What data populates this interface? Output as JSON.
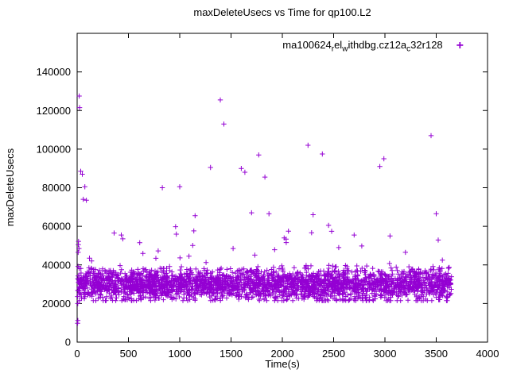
{
  "chart_data": {
    "type": "scatter",
    "title": "maxDeleteUsecs vs Time for qp100.L2",
    "xlabel": "Time(s)",
    "ylabel": "maxDeleteUsecs",
    "xlim": [
      0,
      4000
    ],
    "ylim": [
      0,
      160000
    ],
    "xticks": [
      0,
      500,
      1000,
      1500,
      2000,
      2500,
      3000,
      3500,
      4000
    ],
    "yticks": [
      0,
      20000,
      40000,
      60000,
      80000,
      100000,
      120000,
      140000
    ],
    "grid": false,
    "legend_position": "top-right-inside",
    "series": [
      {
        "name": "ma100624_rel_withdbg.cz12a_c32r128",
        "label_segments": [
          {
            "text": "ma100624"
          },
          {
            "text": "r",
            "sub": true
          },
          {
            "text": "el"
          },
          {
            "text": "w",
            "sub": true
          },
          {
            "text": "ithdbg.cz12a"
          },
          {
            "text": "c",
            "sub": true
          },
          {
            "text": "32r128"
          }
        ],
        "marker_glyph": "+",
        "color": "#9400d3",
        "band": {
          "seed": 42,
          "count": 2800,
          "x_range": [
            3,
            3650
          ],
          "y_center": 29800,
          "y_spread": 8000,
          "y_clamp": [
            21500,
            41500
          ]
        },
        "extra_scatter": {
          "seed": 7,
          "count": 18,
          "x_range": [
            100,
            3600
          ],
          "y_range": [
            41000,
            58000
          ]
        },
        "outliers": [
          [
            5,
            9800
          ],
          [
            7,
            11200
          ],
          [
            6,
            20000
          ],
          [
            10,
            46500
          ],
          [
            12,
            50500
          ],
          [
            14,
            52200
          ],
          [
            18,
            48500
          ],
          [
            20,
            127500
          ],
          [
            24,
            121500
          ],
          [
            35,
            88500
          ],
          [
            50,
            87000
          ],
          [
            60,
            74000
          ],
          [
            75,
            80500
          ],
          [
            90,
            73500
          ],
          [
            120,
            43500
          ],
          [
            430,
            55500
          ],
          [
            445,
            53500
          ],
          [
            610,
            51500
          ],
          [
            830,
            80000
          ],
          [
            960,
            59800
          ],
          [
            1000,
            80500
          ],
          [
            1090,
            44500
          ],
          [
            1150,
            65500
          ],
          [
            1300,
            90500
          ],
          [
            1395,
            125500
          ],
          [
            1430,
            113000
          ],
          [
            1520,
            48500
          ],
          [
            1600,
            90000
          ],
          [
            1635,
            88000
          ],
          [
            1700,
            67000
          ],
          [
            1770,
            97000
          ],
          [
            1830,
            85500
          ],
          [
            1870,
            66500
          ],
          [
            2060,
            57500
          ],
          [
            2250,
            102000
          ],
          [
            2300,
            66000
          ],
          [
            2390,
            97500
          ],
          [
            2450,
            60500
          ],
          [
            2550,
            49000
          ],
          [
            2700,
            55500
          ],
          [
            2950,
            91000
          ],
          [
            2990,
            95000
          ],
          [
            3050,
            55000
          ],
          [
            3200,
            46500
          ],
          [
            3450,
            107000
          ],
          [
            3500,
            66500
          ],
          [
            3560,
            42500
          ],
          [
            3600,
            21500
          ]
        ]
      }
    ]
  }
}
